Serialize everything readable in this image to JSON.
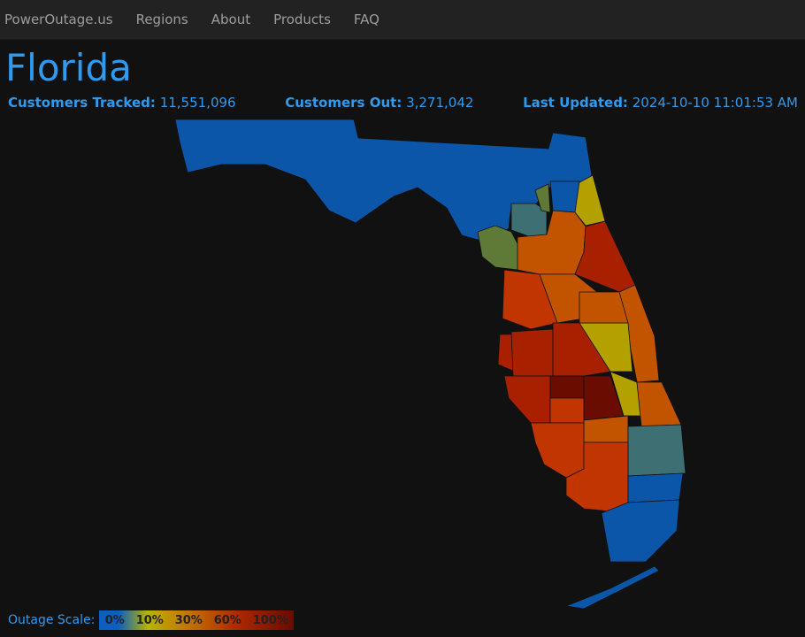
{
  "nav": {
    "brand": "PowerOutage.us",
    "items": [
      "Regions",
      "About",
      "Products",
      "FAQ"
    ]
  },
  "title": "Florida",
  "stats": {
    "tracked_label": "Customers Tracked:",
    "tracked_value": "11,551,096",
    "out_label": "Customers Out:",
    "out_value": "3,271,042",
    "updated_label": "Last Updated:",
    "updated_value": "2024-10-10 11:01:53 AM"
  },
  "legend": {
    "label": "Outage Scale:",
    "ticks": [
      "0%",
      "10%",
      "30%",
      "60%",
      "100%"
    ]
  },
  "colors": {
    "c0": "#0b56a8",
    "c5": "#3d6f73",
    "c8": "#5e7a36",
    "c10": "#b3a100",
    "c30": "#c25400",
    "c45": "#c03500",
    "c60": "#a82000",
    "c100": "#6a0d00"
  }
}
